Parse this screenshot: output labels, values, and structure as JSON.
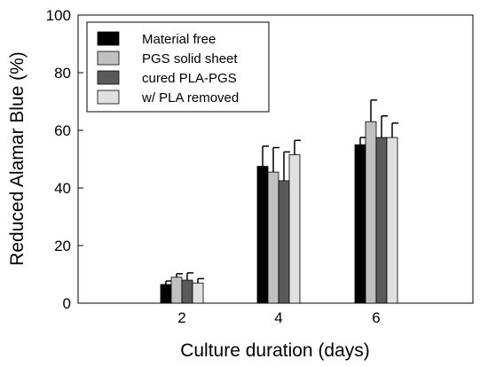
{
  "chart_data": {
    "type": "bar",
    "title": "",
    "xlabel": "Culture duration (days)",
    "ylabel": "Reduced Alamar Blue (%)",
    "ylim": [
      0,
      100
    ],
    "yticks": [
      "0",
      "20",
      "40",
      "60",
      "80",
      "100"
    ],
    "categories": [
      "2",
      "4",
      "6"
    ],
    "error_bars": "upper",
    "legend_position": "top-left",
    "series": [
      {
        "name": "Material free",
        "color": "#000000",
        "values": [
          6.5,
          47.5,
          55.0
        ],
        "errors": [
          1.2,
          7.0,
          2.5
        ]
      },
      {
        "name": "PGS solid sheet",
        "color": "#c0c0c0",
        "values": [
          9.0,
          45.5,
          63.0
        ],
        "errors": [
          1.2,
          8.5,
          7.5
        ]
      },
      {
        "name": "cured PLA-PGS",
        "color": "#5a5a5a",
        "values": [
          8.0,
          42.5,
          57.5
        ],
        "errors": [
          2.5,
          10.0,
          7.5
        ]
      },
      {
        "name": "w/ PLA removed",
        "color": "#e0e0e0",
        "values": [
          7.0,
          51.5,
          57.5
        ],
        "errors": [
          1.5,
          5.0,
          5.0
        ]
      }
    ]
  }
}
